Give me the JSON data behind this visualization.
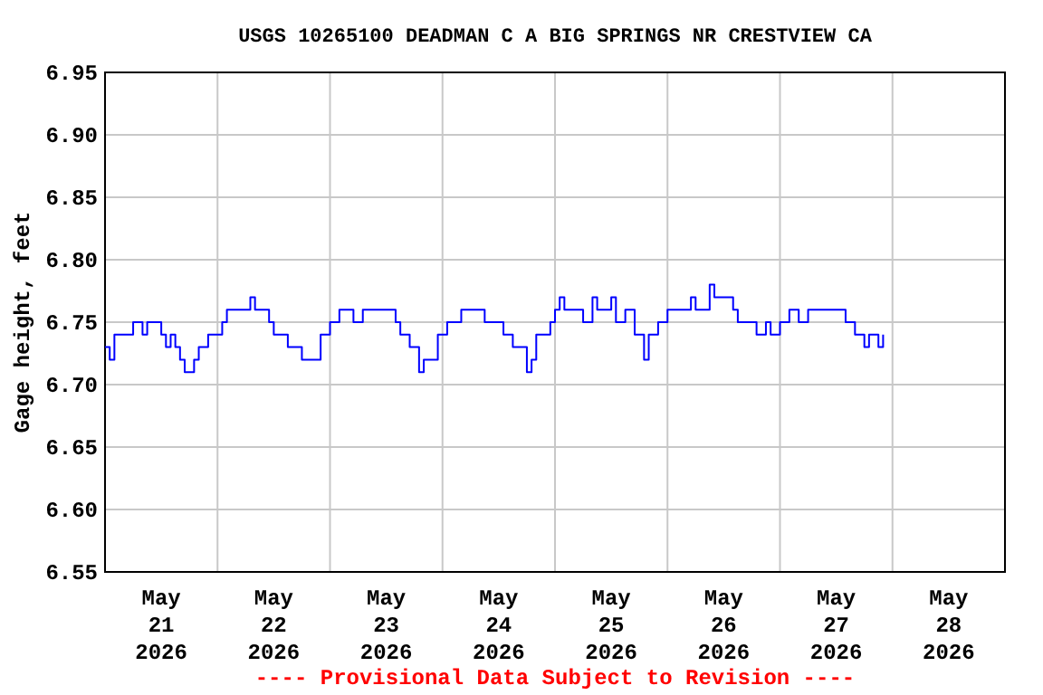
{
  "chart_data": {
    "type": "step",
    "title": "USGS 10265100 DEADMAN C A BIG SPRINGS NR CRESTVIEW CA",
    "ylabel": "Gage height, feet",
    "annotations": [
      "---- Provisional Data Subject to Revision ----"
    ],
    "xlim": [
      "2026-05-21T00:00",
      "2026-05-29T00:00"
    ],
    "xticks": [
      {
        "value": "2026-05-21T12:00",
        "label": "May\n21\n2026"
      },
      {
        "value": "2026-05-22T12:00",
        "label": "May\n22\n2026"
      },
      {
        "value": "2026-05-23T12:00",
        "label": "May\n23\n2026"
      },
      {
        "value": "2026-05-24T12:00",
        "label": "May\n24\n2026"
      },
      {
        "value": "2026-05-25T12:00",
        "label": "May\n25\n2026"
      },
      {
        "value": "2026-05-26T12:00",
        "label": "May\n26\n2026"
      },
      {
        "value": "2026-05-27T12:00",
        "label": "May\n27\n2026"
      },
      {
        "value": "2026-05-28T12:00",
        "label": "May\n28\n2026"
      },
      {
        "value": "2026-05-22T00:00",
        "label": null
      },
      {
        "value": "2026-05-23T00:00",
        "label": null
      },
      {
        "value": "2026-05-24T00:00",
        "label": null
      },
      {
        "value": "2026-05-25T00:00",
        "label": null
      },
      {
        "value": "2026-05-26T00:00",
        "label": null
      },
      {
        "value": "2026-05-27T00:00",
        "label": null
      },
      {
        "value": "2026-05-28T00:00",
        "label": null
      }
    ],
    "ylim": [
      6.55,
      6.95
    ],
    "yticks": [
      {
        "value": 6.55,
        "label": "6.55"
      },
      {
        "value": 6.6,
        "label": "6.60"
      },
      {
        "value": 6.65,
        "label": "6.65"
      },
      {
        "value": 6.7,
        "label": "6.70"
      },
      {
        "value": 6.75,
        "label": "6.75"
      },
      {
        "value": 6.8,
        "label": "6.80"
      },
      {
        "value": 6.85,
        "label": "6.85"
      },
      {
        "value": 6.9,
        "label": "6.90"
      },
      {
        "value": 6.95,
        "label": "6.95"
      }
    ],
    "grid": true,
    "marker": "none",
    "line_style": "solid",
    "series": [
      {
        "color": "#0000ff",
        "x": [
          "2026-05-21T00:00",
          "2026-05-21T01:00",
          "2026-05-21T02:00",
          "2026-05-21T05:00",
          "2026-05-21T06:00",
          "2026-05-21T08:00",
          "2026-05-21T09:00",
          "2026-05-21T11:00",
          "2026-05-21T12:00",
          "2026-05-21T13:00",
          "2026-05-21T14:00",
          "2026-05-21T15:00",
          "2026-05-21T16:00",
          "2026-05-21T17:00",
          "2026-05-21T19:00",
          "2026-05-21T20:00",
          "2026-05-21T22:00",
          "2026-05-21T23:00",
          "2026-05-22T01:00",
          "2026-05-22T02:00",
          "2026-05-22T06:00",
          "2026-05-22T07:00",
          "2026-05-22T08:00",
          "2026-05-22T11:00",
          "2026-05-22T12:00",
          "2026-05-22T15:00",
          "2026-05-22T16:00",
          "2026-05-22T18:00",
          "2026-05-22T19:00",
          "2026-05-22T21:00",
          "2026-05-22T22:00",
          "2026-05-23T00:00",
          "2026-05-23T02:00",
          "2026-05-23T05:00",
          "2026-05-23T07:00",
          "2026-05-23T13:00",
          "2026-05-23T14:00",
          "2026-05-23T15:00",
          "2026-05-23T17:00",
          "2026-05-23T19:00",
          "2026-05-23T20:00",
          "2026-05-23T22:00",
          "2026-05-23T23:00",
          "2026-05-24T01:00",
          "2026-05-24T02:00",
          "2026-05-24T04:00",
          "2026-05-24T07:00",
          "2026-05-24T09:00",
          "2026-05-24T11:00",
          "2026-05-24T13:00",
          "2026-05-24T15:00",
          "2026-05-24T16:00",
          "2026-05-24T18:00",
          "2026-05-24T19:00",
          "2026-05-24T20:00",
          "2026-05-24T22:00",
          "2026-05-24T23:00",
          "2026-05-25T00:00",
          "2026-05-25T01:00",
          "2026-05-25T02:00",
          "2026-05-25T06:00",
          "2026-05-25T08:00",
          "2026-05-25T09:00",
          "2026-05-25T12:00",
          "2026-05-25T13:00",
          "2026-05-25T15:00",
          "2026-05-25T17:00",
          "2026-05-25T19:00",
          "2026-05-25T20:00",
          "2026-05-25T22:00",
          "2026-05-26T00:00",
          "2026-05-26T03:00",
          "2026-05-26T05:00",
          "2026-05-26T06:00",
          "2026-05-26T09:00",
          "2026-05-26T10:00",
          "2026-05-26T12:00",
          "2026-05-26T14:00",
          "2026-05-26T15:00",
          "2026-05-26T18:00",
          "2026-05-26T19:00",
          "2026-05-26T21:00",
          "2026-05-26T22:00",
          "2026-05-27T00:00",
          "2026-05-27T02:00",
          "2026-05-27T04:00",
          "2026-05-27T06:00",
          "2026-05-27T12:00",
          "2026-05-27T14:00",
          "2026-05-27T15:00",
          "2026-05-27T16:00",
          "2026-05-27T18:00",
          "2026-05-27T19:00",
          "2026-05-27T21:00",
          "2026-05-27T22:00"
        ],
        "values": [
          6.73,
          6.72,
          6.74,
          6.74,
          6.75,
          6.74,
          6.75,
          6.75,
          6.74,
          6.73,
          6.74,
          6.73,
          6.72,
          6.71,
          6.72,
          6.73,
          6.74,
          6.74,
          6.75,
          6.76,
          6.76,
          6.77,
          6.76,
          6.75,
          6.74,
          6.73,
          6.73,
          6.72,
          6.72,
          6.72,
          6.74,
          6.75,
          6.76,
          6.75,
          6.76,
          6.76,
          6.75,
          6.74,
          6.73,
          6.71,
          6.72,
          6.72,
          6.74,
          6.75,
          6.75,
          6.76,
          6.76,
          6.75,
          6.75,
          6.74,
          6.73,
          6.73,
          6.71,
          6.72,
          6.74,
          6.74,
          6.75,
          6.76,
          6.77,
          6.76,
          6.75,
          6.77,
          6.76,
          6.77,
          6.75,
          6.76,
          6.74,
          6.72,
          6.74,
          6.75,
          6.76,
          6.76,
          6.77,
          6.76,
          6.78,
          6.77,
          6.77,
          6.76,
          6.75,
          6.75,
          6.74,
          6.75,
          6.74,
          6.75,
          6.76,
          6.75,
          6.76,
          6.76,
          6.75,
          6.75,
          6.74,
          6.73,
          6.74,
          6.73,
          6.74
        ]
      }
    ]
  }
}
